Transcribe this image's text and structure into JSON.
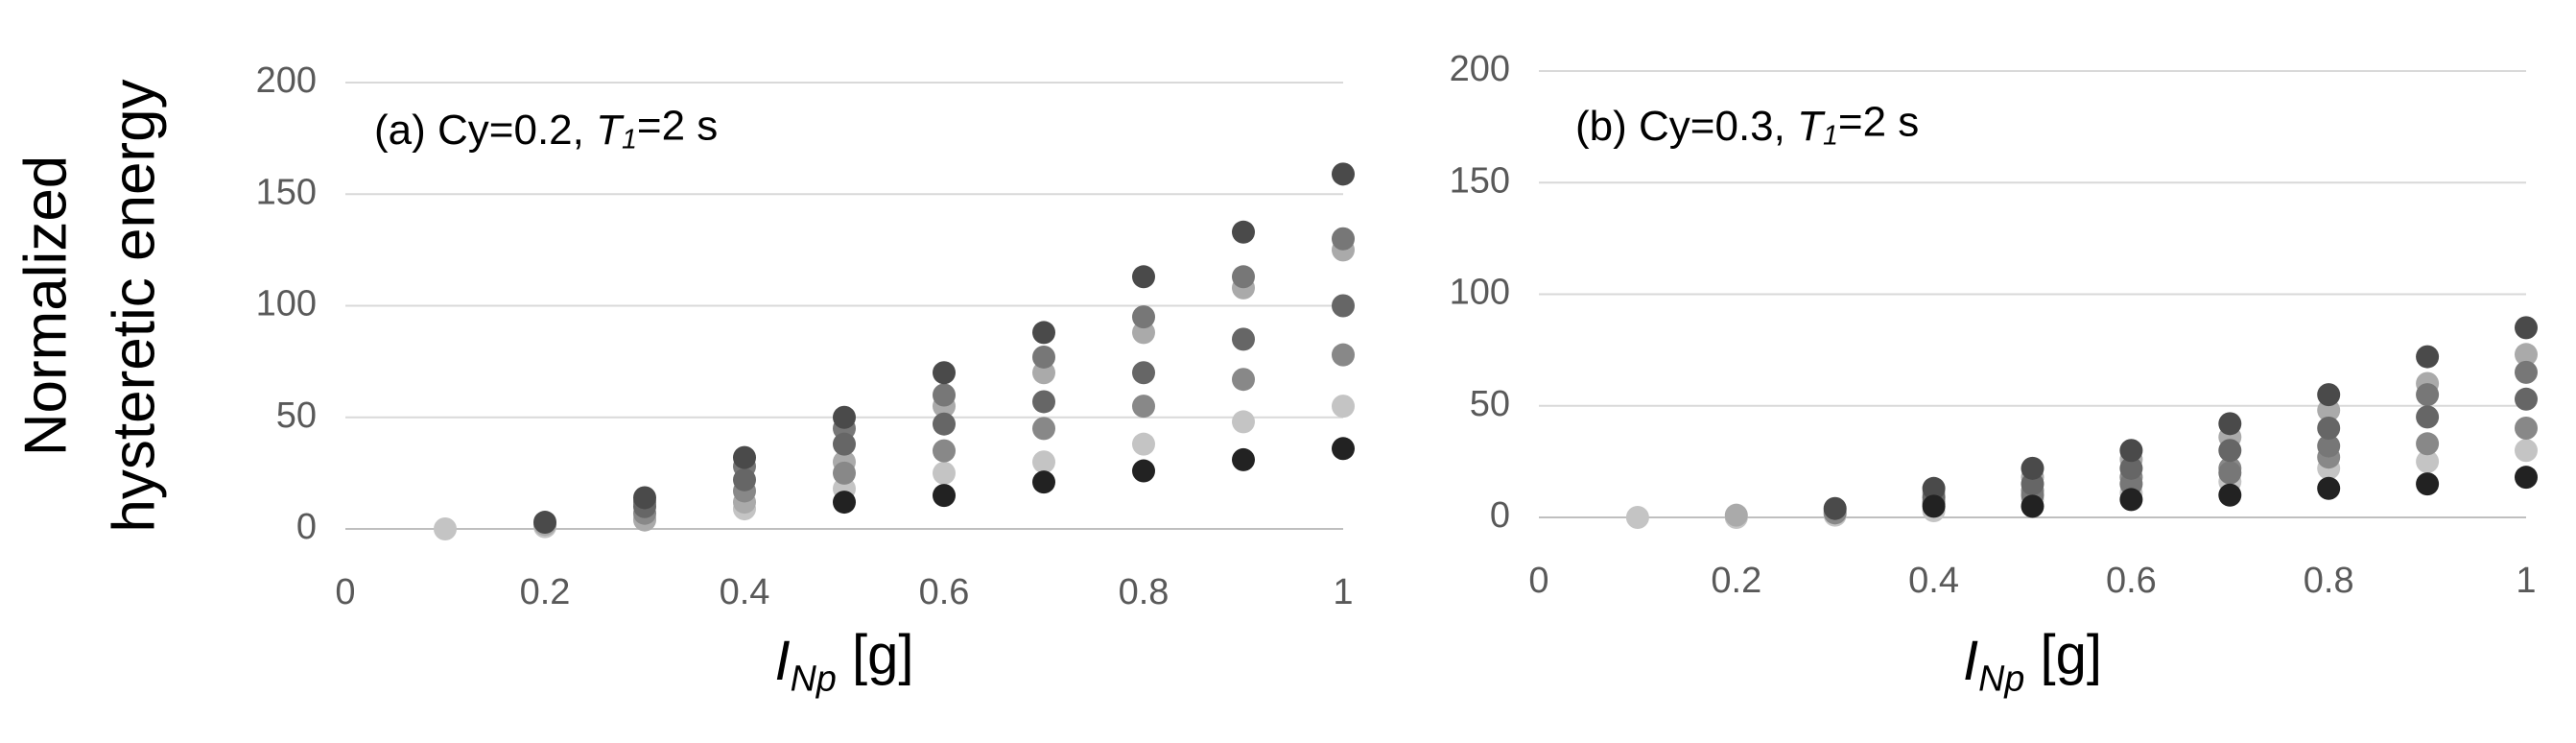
{
  "chart_data": [
    {
      "type": "scatter",
      "annotation": {
        "prefix": "(a) Cy=0.2, ",
        "symbol": "T",
        "subscript": "1",
        "suffix": "=2 s"
      },
      "y_label": [
        "Normalized",
        "hysteretic energy"
      ],
      "x_label": {
        "symbol": "I",
        "subscript": "Np",
        "suffix": " [g]"
      },
      "x": [
        0.1,
        0.2,
        0.3,
        0.4,
        0.5,
        0.6,
        0.7,
        0.8,
        0.9,
        1
      ],
      "series": [
        {
          "color": "#c4c4c4",
          "values": [
            0,
            1,
            5,
            9,
            18,
            25,
            30,
            38,
            48,
            55
          ]
        },
        {
          "color": "#aaaaaa",
          "values": [
            null,
            2,
            4,
            12,
            30,
            55,
            70,
            88,
            108,
            125
          ]
        },
        {
          "color": "#888888",
          "values": [
            null,
            null,
            7,
            17,
            25,
            35,
            45,
            55,
            67,
            78
          ]
        },
        {
          "color": "#777777",
          "values": [
            null,
            null,
            12,
            28,
            45,
            60,
            77,
            95,
            113,
            130
          ]
        },
        {
          "color": "#666666",
          "values": [
            null,
            null,
            10,
            22,
            38,
            47,
            57,
            70,
            85,
            100
          ]
        },
        {
          "color": "#4a4a4a",
          "values": [
            null,
            3,
            14,
            32,
            50,
            70,
            88,
            113,
            133,
            159
          ]
        },
        {
          "color": "#222222",
          "values": [
            null,
            null,
            null,
            null,
            12,
            15,
            21,
            26,
            31,
            36
          ]
        }
      ],
      "xlim": [
        0,
        1
      ],
      "xticks": [
        0,
        0.2,
        0.4,
        0.6,
        0.8,
        1
      ],
      "ylim": [
        0,
        200
      ],
      "yticks": [
        0,
        50,
        100,
        150,
        200
      ],
      "grid": true
    },
    {
      "type": "scatter",
      "annotation": {
        "prefix": "(b) Cy=0.3, ",
        "symbol": "T",
        "subscript": "1",
        "suffix": "=2 s"
      },
      "x_label": {
        "symbol": "I",
        "subscript": "Np",
        "suffix": " [g]"
      },
      "x": [
        0.1,
        0.2,
        0.3,
        0.4,
        0.5,
        0.6,
        0.7,
        0.8,
        0.9,
        1
      ],
      "series": [
        {
          "color": "#c4c4c4",
          "values": [
            0,
            0,
            1,
            3,
            8,
            11,
            16,
            22,
            25,
            30
          ]
        },
        {
          "color": "#aaaaaa",
          "values": [
            null,
            1,
            3,
            11,
            18,
            26,
            36,
            48,
            60,
            73
          ]
        },
        {
          "color": "#888888",
          "values": [
            null,
            null,
            2,
            7,
            12,
            18,
            22,
            27,
            33,
            40
          ]
        },
        {
          "color": "#777777",
          "values": [
            null,
            null,
            null,
            6,
            10,
            15,
            20,
            32,
            55,
            65
          ]
        },
        {
          "color": "#666666",
          "values": [
            null,
            null,
            null,
            9,
            15,
            22,
            30,
            40,
            45,
            53
          ]
        },
        {
          "color": "#4a4a4a",
          "values": [
            null,
            null,
            4,
            13,
            22,
            30,
            42,
            55,
            72,
            85
          ]
        },
        {
          "color": "#222222",
          "values": [
            null,
            null,
            null,
            5,
            5,
            8,
            10,
            13,
            15,
            18
          ]
        }
      ],
      "xlim": [
        0,
        1
      ],
      "xticks": [
        0,
        0.2,
        0.4,
        0.6,
        0.8,
        1
      ],
      "ylim": [
        0,
        200
      ],
      "yticks": [
        0,
        50,
        100,
        150,
        200
      ],
      "grid": true
    }
  ]
}
